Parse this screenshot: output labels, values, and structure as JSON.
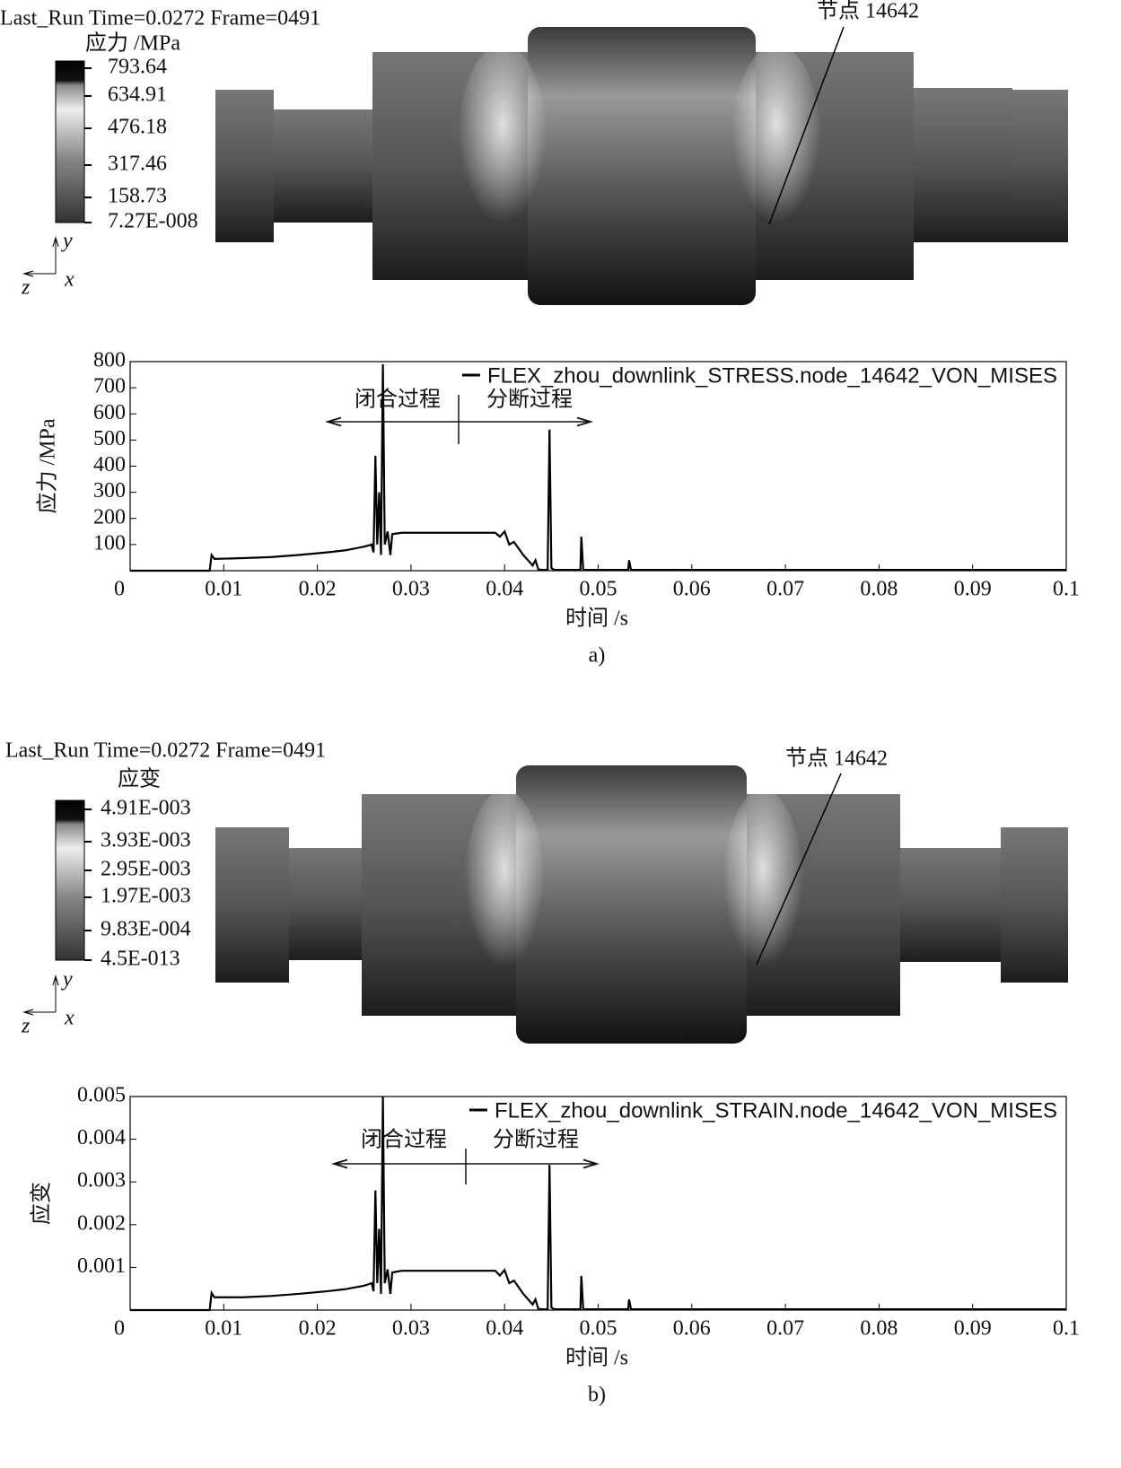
{
  "panels": [
    {
      "header": "Last_Run Time=0.0272 Frame=0491",
      "legend_title": "应力 /MPa",
      "legend_labels": [
        "793.64",
        "634.91",
        "476.18",
        "317.46",
        "158.73",
        "7.27E-008"
      ],
      "axes": [
        "y",
        "z",
        "x"
      ],
      "node_label": "节点 14642"
    },
    {
      "header": "Last_Run Time=0.0272 Frame=0491",
      "legend_title": "应变",
      "legend_labels": [
        "4.91E-003",
        "3.93E-003",
        "2.95E-003",
        "1.97E-003",
        "9.83E-004",
        "4.5E-013"
      ],
      "axes": [
        "y",
        "z",
        "x"
      ],
      "node_label": "节点 14642"
    }
  ],
  "chart_data": [
    {
      "type": "line",
      "ylabel": "应力 /MPa",
      "xlabel": "时间 /s",
      "caption": "a)",
      "annotations": [
        "闭合过程",
        "分断过程"
      ],
      "x": [
        0,
        0.0085,
        0.0087,
        0.009,
        0.012,
        0.015,
        0.018,
        0.021,
        0.023,
        0.025,
        0.0258,
        0.026,
        0.0262,
        0.0264,
        0.0266,
        0.0268,
        0.027,
        0.0272,
        0.0275,
        0.0278,
        0.028,
        0.029,
        0.031,
        0.035,
        0.039,
        0.0395,
        0.04,
        0.0405,
        0.041,
        0.042,
        0.043,
        0.0433,
        0.0436,
        0.044,
        0.0446,
        0.0448,
        0.045,
        0.0453,
        0.0481,
        0.0482,
        0.0484,
        0.0532,
        0.0533,
        0.0535,
        0.06,
        0.07,
        0.08,
        0.1
      ],
      "series": [
        {
          "name": "FLEX_zhou_downlink_STRESS.node_14642_VON_MISES",
          "color": "#000000",
          "values": [
            0,
            0,
            60,
            45,
            48,
            52,
            60,
            70,
            78,
            92,
            100,
            70,
            440,
            100,
            300,
            60,
            790,
            100,
            150,
            60,
            140,
            145,
            145,
            145,
            145,
            130,
            150,
            100,
            110,
            60,
            20,
            40,
            5,
            3,
            3,
            540,
            10,
            3,
            3,
            130,
            3,
            3,
            40,
            3,
            3,
            3,
            3,
            3
          ]
        }
      ],
      "xlim": [
        0,
        0.1
      ],
      "xticks": [
        0,
        0.01,
        0.02,
        0.03,
        0.04,
        0.05,
        0.06,
        0.07,
        0.08,
        0.09,
        0.1
      ],
      "ylim": [
        0,
        800
      ],
      "yticks": [
        100,
        200,
        300,
        400,
        500,
        600,
        700,
        800
      ]
    },
    {
      "type": "line",
      "ylabel": "应变",
      "xlabel": "时间 /s",
      "caption": "b)",
      "annotations": [
        "闭合过程",
        "分断过程"
      ],
      "x": [
        0,
        0.0085,
        0.0087,
        0.009,
        0.012,
        0.015,
        0.018,
        0.021,
        0.023,
        0.025,
        0.0258,
        0.026,
        0.0262,
        0.0264,
        0.0266,
        0.0268,
        0.027,
        0.0272,
        0.0275,
        0.0278,
        0.028,
        0.029,
        0.031,
        0.035,
        0.039,
        0.0395,
        0.04,
        0.0405,
        0.041,
        0.042,
        0.043,
        0.0433,
        0.0436,
        0.044,
        0.0446,
        0.0448,
        0.045,
        0.0453,
        0.0481,
        0.0482,
        0.0484,
        0.0532,
        0.0533,
        0.0535,
        0.06,
        0.07,
        0.08,
        0.1
      ],
      "series": [
        {
          "name": "FLEX_zhou_downlink_STRAIN.node_14642_VON_MISES",
          "color": "#000000",
          "values": [
            0,
            0,
            0.0004,
            0.0003,
            0.0003,
            0.00033,
            0.00038,
            0.00044,
            0.00049,
            0.00057,
            0.00063,
            0.00044,
            0.0028,
            0.00063,
            0.0019,
            0.00038,
            0.005,
            0.00063,
            0.00095,
            0.00038,
            0.00088,
            0.00092,
            0.00092,
            0.00092,
            0.00092,
            0.00081,
            0.00094,
            0.00063,
            0.00069,
            0.00038,
            0.00013,
            0.00025,
            3e-05,
            2e-05,
            2e-05,
            0.0034,
            6e-05,
            2e-05,
            2e-05,
            0.0008,
            2e-05,
            2e-05,
            0.00025,
            2e-05,
            2e-05,
            2e-05,
            2e-05,
            2e-05
          ]
        }
      ],
      "xlim": [
        0,
        0.1
      ],
      "xticks": [
        0,
        0.01,
        0.02,
        0.03,
        0.04,
        0.05,
        0.06,
        0.07,
        0.08,
        0.09,
        0.1
      ],
      "ylim": [
        0,
        0.005
      ],
      "yticks": [
        0.001,
        0.002,
        0.003,
        0.004,
        0.005
      ]
    }
  ]
}
